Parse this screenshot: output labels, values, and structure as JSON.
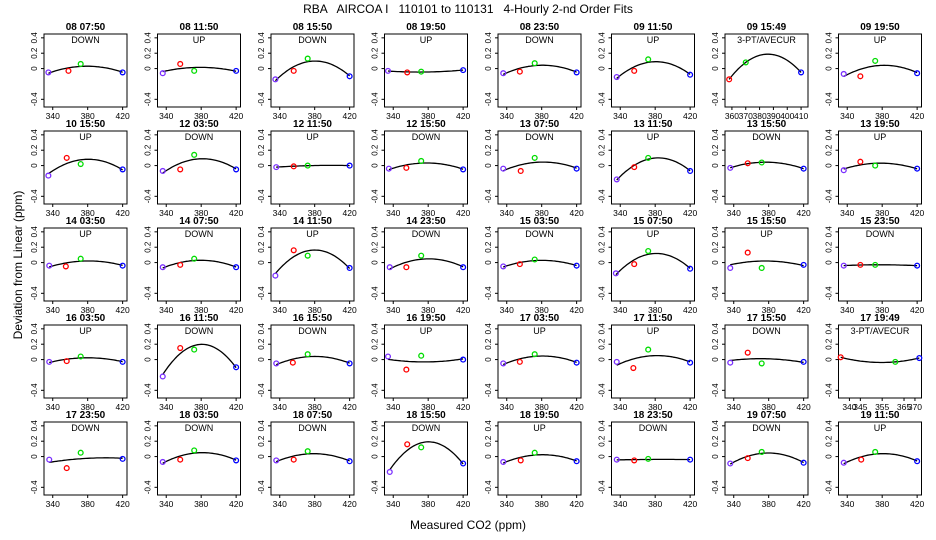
{
  "page": {
    "title": "RBA   AIRCOA I   110101 to 110131   4-Hourly 2-nd Order Fits",
    "xlabel": "Measured CO2 (ppm)",
    "ylabel": "Deviation from Linear (ppm)"
  },
  "colors": {
    "c1": "#7a2fff",
    "c2": "#ff0000",
    "c3": "#00dd00",
    "c4": "#0000ff",
    "curve": "#000000"
  },
  "chart_data": {
    "type": "scatter",
    "default_xlim": [
      330,
      425
    ],
    "default_xticks": [
      340,
      380,
      420
    ],
    "ylim": [
      -0.5,
      0.45
    ],
    "yticks": [
      -0.4,
      0,
      0.2,
      0.4
    ],
    "yticklabels": [
      "-0.4",
      "0",
      "0.2",
      "0.4"
    ],
    "panels": [
      {
        "title": "08 07:50",
        "mode": "DOWN",
        "x": [
          335,
          358,
          372,
          420
        ],
        "y": [
          -0.05,
          -0.03,
          0.06,
          -0.05
        ]
      },
      {
        "title": "08 11:50",
        "mode": "UP",
        "x": [
          336,
          356,
          372,
          420
        ],
        "y": [
          -0.06,
          0.06,
          -0.03,
          -0.03
        ]
      },
      {
        "title": "08 15:50",
        "mode": "DOWN",
        "x": [
          335,
          356,
          372,
          420
        ],
        "y": [
          -0.14,
          -0.03,
          0.13,
          -0.1
        ]
      },
      {
        "title": "08 19:50",
        "mode": "UP",
        "x": [
          334,
          356,
          372,
          420
        ],
        "y": [
          -0.03,
          -0.05,
          -0.04,
          -0.02
        ]
      },
      {
        "title": "08 23:50",
        "mode": "DOWN",
        "x": [
          336,
          355,
          372,
          420
        ],
        "y": [
          -0.06,
          -0.04,
          0.07,
          -0.05
        ]
      },
      {
        "title": "09 11:50",
        "mode": "UP",
        "x": [
          336,
          356,
          372,
          420
        ],
        "y": [
          -0.11,
          -0.03,
          0.12,
          -0.08
        ]
      },
      {
        "title": "09 15:49",
        "mode": "3-PT/AVECUR",
        "xlim": [
          355,
          415
        ],
        "xticks": [
          360,
          370,
          380,
          390,
          400,
          410
        ],
        "x": [
          358,
          370,
          410
        ],
        "y": [
          -0.14,
          0.08,
          -0.05
        ]
      },
      {
        "title": "09 19:50",
        "mode": "UP",
        "x": [
          336,
          355,
          372,
          420
        ],
        "y": [
          -0.07,
          -0.1,
          0.1,
          -0.06
        ]
      },
      {
        "title": "10 15:50",
        "mode": "UP",
        "x": [
          335,
          356,
          372,
          420
        ],
        "y": [
          -0.13,
          0.1,
          0.02,
          -0.05
        ]
      },
      {
        "title": "12 03:50",
        "mode": "DOWN",
        "x": [
          336,
          356,
          372,
          420
        ],
        "y": [
          -0.07,
          -0.05,
          0.14,
          -0.05
        ]
      },
      {
        "title": "12 11:50",
        "mode": "UP",
        "x": [
          336,
          356,
          372,
          420
        ],
        "y": [
          -0.02,
          -0.01,
          0.0,
          -0.0
        ]
      },
      {
        "title": "12 15:50",
        "mode": "DOWN",
        "x": [
          335,
          355,
          372,
          420
        ],
        "y": [
          -0.04,
          -0.03,
          0.06,
          -0.05
        ]
      },
      {
        "title": "13 07:50",
        "mode": "DOWN",
        "x": [
          336,
          356,
          372,
          420
        ],
        "y": [
          -0.04,
          -0.07,
          0.1,
          -0.04
        ]
      },
      {
        "title": "13 11:50",
        "mode": "UP",
        "x": [
          336,
          356,
          372,
          420
        ],
        "y": [
          -0.18,
          -0.02,
          0.1,
          -0.07
        ]
      },
      {
        "title": "13 15:50",
        "mode": "DOWN",
        "x": [
          336,
          356,
          372,
          420
        ],
        "y": [
          -0.03,
          0.03,
          0.04,
          -0.04
        ]
      },
      {
        "title": "13 19:50",
        "mode": "UP",
        "x": [
          336,
          355,
          372,
          420
        ],
        "y": [
          -0.06,
          0.05,
          -0.0,
          -0.04
        ]
      },
      {
        "title": "14 03:50",
        "mode": "UP",
        "x": [
          336,
          355,
          372,
          420
        ],
        "y": [
          -0.04,
          -0.05,
          0.05,
          -0.04
        ]
      },
      {
        "title": "14 07:50",
        "mode": "DOWN",
        "x": [
          336,
          356,
          372,
          420
        ],
        "y": [
          -0.06,
          -0.03,
          0.05,
          -0.06
        ]
      },
      {
        "title": "14 11:50",
        "mode": "UP",
        "x": [
          335,
          356,
          372,
          420
        ],
        "y": [
          -0.17,
          0.16,
          0.09,
          -0.07
        ]
      },
      {
        "title": "14 23:50",
        "mode": "DOWN",
        "x": [
          336,
          355,
          372,
          420
        ],
        "y": [
          -0.06,
          -0.06,
          0.09,
          -0.06
        ]
      },
      {
        "title": "15 03:50",
        "mode": "DOWN",
        "x": [
          336,
          355,
          372,
          420
        ],
        "y": [
          -0.05,
          -0.02,
          0.04,
          -0.04
        ]
      },
      {
        "title": "15 07:50",
        "mode": "UP",
        "x": [
          335,
          356,
          372,
          420
        ],
        "y": [
          -0.14,
          -0.02,
          0.15,
          -0.08
        ]
      },
      {
        "title": "15 15:50",
        "mode": "UP",
        "x": [
          336,
          356,
          372,
          420
        ],
        "y": [
          -0.07,
          0.13,
          -0.07,
          -0.03
        ]
      },
      {
        "title": "15 23:50",
        "mode": "DOWN",
        "x": [
          336,
          355,
          372,
          420
        ],
        "y": [
          -0.04,
          -0.03,
          -0.03,
          -0.04
        ]
      },
      {
        "title": "16 03:50",
        "mode": "UP",
        "x": [
          336,
          356,
          372,
          420
        ],
        "y": [
          -0.03,
          -0.02,
          0.04,
          -0.03
        ]
      },
      {
        "title": "16 11:50",
        "mode": "DOWN",
        "x": [
          336,
          356,
          372,
          420
        ],
        "y": [
          -0.22,
          0.15,
          0.13,
          -0.1
        ]
      },
      {
        "title": "16 15:50",
        "mode": "DOWN",
        "x": [
          336,
          355,
          372,
          420
        ],
        "y": [
          -0.05,
          -0.04,
          0.07,
          -0.05
        ]
      },
      {
        "title": "16 19:50",
        "mode": "UP",
        "x": [
          334,
          355,
          372,
          420
        ],
        "y": [
          0.04,
          -0.13,
          0.05,
          -0.0
        ]
      },
      {
        "title": "17 03:50",
        "mode": "UP",
        "x": [
          336,
          355,
          372,
          420
        ],
        "y": [
          -0.05,
          -0.03,
          0.07,
          -0.04
        ]
      },
      {
        "title": "17 11:50",
        "mode": "UP",
        "x": [
          336,
          355,
          372,
          420
        ],
        "y": [
          -0.03,
          -0.11,
          0.13,
          -0.04
        ]
      },
      {
        "title": "17 15:50",
        "mode": "DOWN",
        "x": [
          336,
          356,
          372,
          420
        ],
        "y": [
          -0.04,
          0.09,
          -0.05,
          -0.03
        ]
      },
      {
        "title": "17 19:49",
        "mode": "3-PT/AVECUR",
        "xlim": [
          335,
          373
        ],
        "xticks": [
          340,
          345,
          355,
          365,
          370
        ],
        "xticklabels": [
          "340",
          "345",
          "355",
          "365",
          "370"
        ],
        "x": [
          336,
          361,
          372
        ],
        "y": [
          0.03,
          -0.03,
          0.02
        ]
      },
      {
        "title": "17 23:50",
        "mode": "DOWN",
        "x": [
          336,
          356,
          372,
          420
        ],
        "y": [
          -0.04,
          -0.15,
          0.05,
          -0.03
        ]
      },
      {
        "title": "18 03:50",
        "mode": "DOWN",
        "x": [
          336,
          356,
          372,
          420
        ],
        "y": [
          -0.07,
          -0.04,
          0.08,
          -0.05
        ]
      },
      {
        "title": "18 07:50",
        "mode": "DOWN",
        "x": [
          336,
          356,
          372,
          420
        ],
        "y": [
          -0.05,
          -0.04,
          0.07,
          -0.06
        ]
      },
      {
        "title": "18 15:50",
        "mode": "DOWN",
        "x": [
          336,
          356,
          372,
          420
        ],
        "y": [
          -0.2,
          0.16,
          0.12,
          -0.09
        ]
      },
      {
        "title": "18 19:50",
        "mode": "UP",
        "x": [
          336,
          356,
          372,
          420
        ],
        "y": [
          -0.07,
          -0.05,
          0.05,
          -0.06
        ]
      },
      {
        "title": "18 23:50",
        "mode": "DOWN",
        "x": [
          336,
          356,
          372,
          420
        ],
        "y": [
          -0.04,
          -0.05,
          -0.03,
          -0.04
        ]
      },
      {
        "title": "19 07:50",
        "mode": "DOWN",
        "x": [
          336,
          356,
          372,
          420
        ],
        "y": [
          -0.09,
          -0.02,
          0.06,
          -0.08
        ]
      },
      {
        "title": "19 11:50",
        "mode": "UP",
        "x": [
          336,
          356,
          372,
          420
        ],
        "y": [
          -0.08,
          -0.04,
          0.06,
          -0.06
        ]
      }
    ]
  }
}
